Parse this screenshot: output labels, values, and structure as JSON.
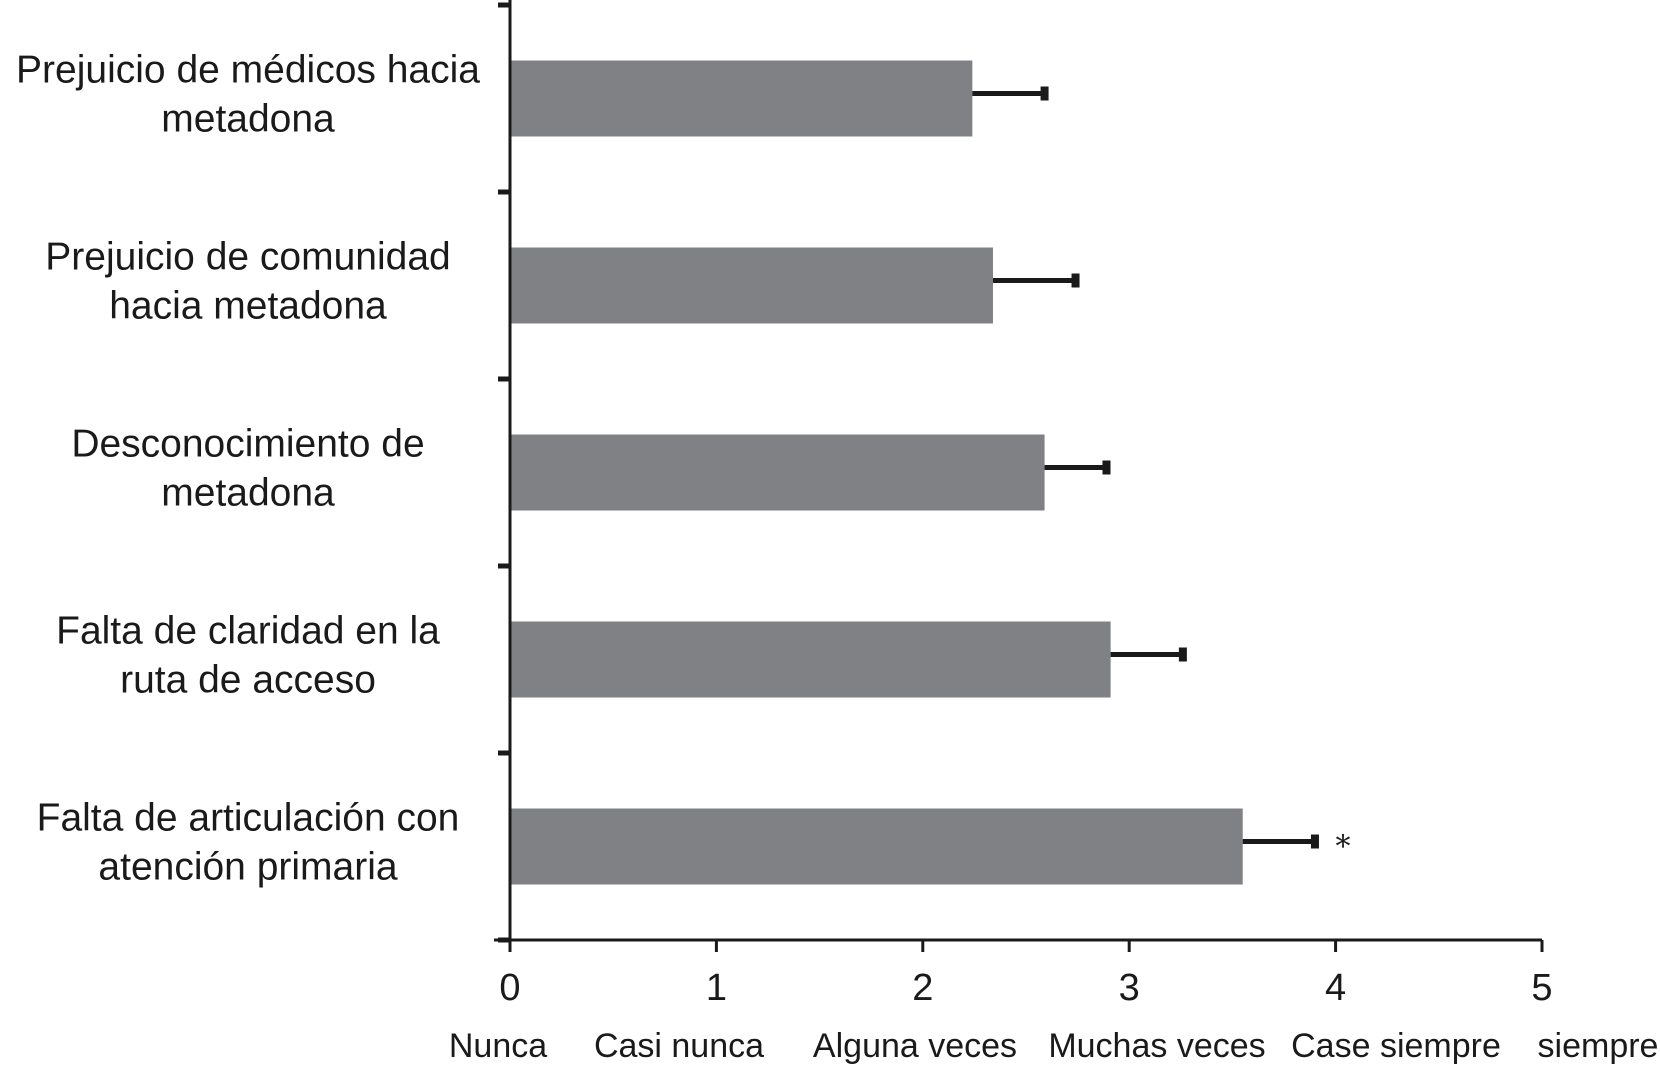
{
  "chart_data": {
    "type": "bar",
    "orientation": "horizontal",
    "title": "",
    "xlabel": "",
    "ylabel": "",
    "xlim": [
      0,
      5
    ],
    "grid": false,
    "bar_color": "#808184",
    "categories": [
      [
        "Prejuicio de médicos hacia",
        "metadona"
      ],
      [
        "Prejuicio de comunidad",
        "hacia metadona"
      ],
      [
        "Desconocimiento de",
        "metadona"
      ],
      [
        "Falta de claridad en la",
        "ruta de acceso"
      ],
      [
        "Falta de articulación con",
        "atención primaria"
      ]
    ],
    "values": [
      2.24,
      2.34,
      2.59,
      2.91,
      3.55
    ],
    "error_upper": [
      2.59,
      2.74,
      2.89,
      3.26,
      3.9
    ],
    "annotations": [
      "",
      "",
      "",
      "",
      "*"
    ],
    "x_ticks": [
      0,
      1,
      2,
      3,
      4,
      5
    ],
    "x_tick_labels": [
      "0",
      "1",
      "2",
      "3",
      "4",
      "5"
    ],
    "x_scale_labels": [
      "Nunca",
      "Casi nunca",
      "Alguna veces",
      "Muchas veces",
      "Case siempre",
      "siempre"
    ]
  }
}
